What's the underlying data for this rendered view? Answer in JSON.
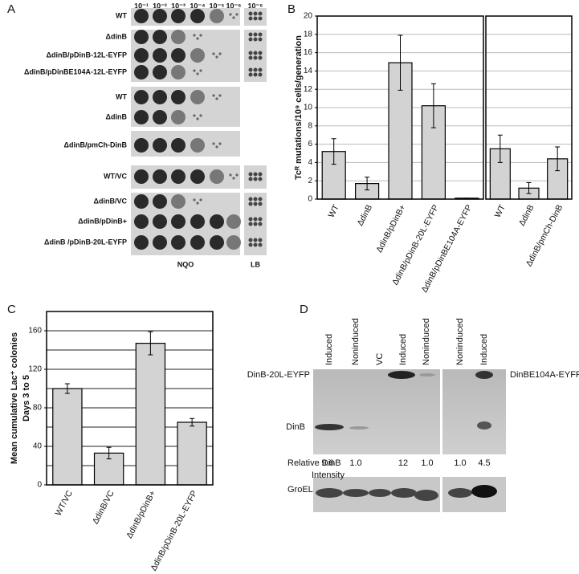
{
  "panel_labels": [
    "A",
    "B",
    "C",
    "D"
  ],
  "panel_a": {
    "dilutions": [
      "10⁻¹",
      "10⁻²",
      "10⁻³",
      "10⁻⁴",
      "10⁻⁵",
      "10⁻⁶"
    ],
    "lb_dilution": "10⁻⁶",
    "rows": [
      "WT",
      "ΔdinB",
      "ΔdinB/pDinB-12L-EYFP",
      "ΔdinB/pDinBE104A-12L-EYFP",
      "WT",
      "ΔdinB",
      "ΔdinB/pmCh-DinB",
      "WT/VC",
      "ΔdinB/VC",
      "ΔdinB/pDinB+",
      "ΔdinB /pDinB-20L-EYFP"
    ],
    "x_labels": [
      "NQO",
      "LB"
    ]
  },
  "chart_data": [
    {
      "type": "bar",
      "y_label": "Tcᴿ mutations/10⁹ cells/generation",
      "categories": [
        "WT",
        "ΔdinB",
        "ΔdinB/pDinB+",
        "ΔdinB/pDinB-20L-EYFP",
        "ΔdinB/pDinBE104A-EYFP"
      ],
      "values": [
        5.2,
        1.7,
        14.9,
        10.2,
        0.1
      ],
      "errors": [
        1.4,
        0.7,
        3.0,
        2.4,
        0
      ],
      "color": "#d3d3d3",
      "ylim": [
        0,
        20
      ],
      "yticks": [
        0,
        2,
        4,
        6,
        8,
        10,
        12,
        14,
        16,
        18,
        20
      ],
      "grid": true
    },
    {
      "type": "bar",
      "categories": [
        "WT",
        "ΔdinB",
        "ΔdinB/pmCh-DinB"
      ],
      "values": [
        5.5,
        1.2,
        4.4
      ],
      "errors": [
        1.5,
        0.6,
        1.3
      ],
      "color": "#d3d3d3",
      "ylim": [
        0,
        20
      ],
      "grid": true
    },
    {
      "type": "bar",
      "y_label": [
        "Mean cumulative Lac⁺ colonies",
        "Days 3 to 5"
      ],
      "categories": [
        "WT/VC",
        "ΔdinB/VC",
        "ΔdinB/pDinB+",
        "ΔdinB/pDinB-20L-EYFP"
      ],
      "values": [
        100,
        33,
        147,
        65
      ],
      "errors": [
        5,
        6,
        12,
        4
      ],
      "color": "#d3d3d3",
      "ylim": [
        0,
        180
      ],
      "yticks": [
        0,
        40,
        80,
        120,
        160
      ],
      "minor_yticks": [
        20,
        60,
        100,
        140
      ],
      "grid": true
    }
  ],
  "panel_d": {
    "lanes": [
      "Induced",
      "Noninduced",
      "VC",
      "Induced",
      "Noninduced",
      "Noninduced",
      "Induced"
    ],
    "band_labels": [
      "DinB-20L-EYFP",
      "DinB",
      "DinBE104A-EYFP"
    ],
    "intensity_label": [
      "Relative DinB",
      "Intensity"
    ],
    "intensities": [
      "9.6",
      "1.0",
      "12",
      "1.0",
      "1.0",
      "4.5"
    ],
    "loading_label": "GroEL"
  }
}
